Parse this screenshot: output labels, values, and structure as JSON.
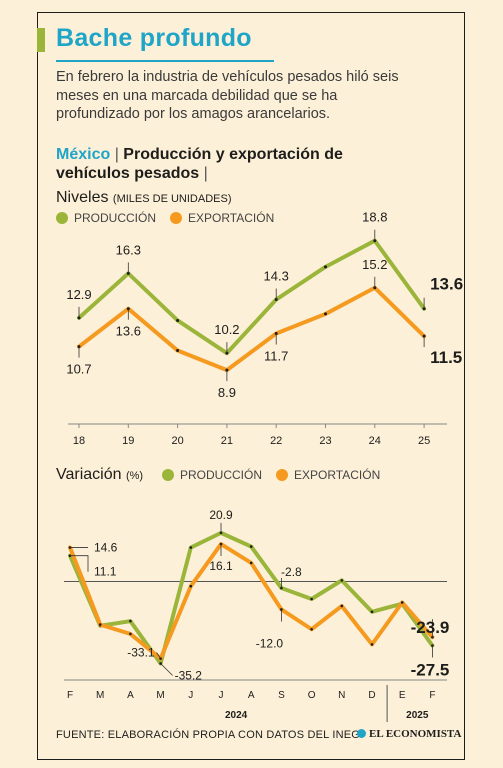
{
  "header": {
    "title": "Bache profundo",
    "description": "En febrero la industria de vehículos pesados hiló seis meses en una marcada debilidad que se ha profundizado por los amagos arancelarios.",
    "subtitle_country": "México",
    "subtitle_sep": " | ",
    "subtitle_text": "Producción y exportación de vehículos pesados",
    "subtitle_trailing": " |"
  },
  "colors": {
    "produccion": "#9ab53a",
    "exportacion": "#f59a1f",
    "title": "#1fa5c8"
  },
  "chart_data": [
    {
      "type": "line",
      "title": "Niveles",
      "units": "(MILES DE UNIDADES)",
      "categories": [
        "18",
        "19",
        "20",
        "21",
        "22",
        "23",
        "24",
        "25"
      ],
      "series": [
        {
          "name": "PRODUCCIÓN",
          "values": [
            12.9,
            16.3,
            12.7,
            10.2,
            14.3,
            16.8,
            18.8,
            13.6
          ]
        },
        {
          "name": "EXPORTACIÓN",
          "values": [
            10.7,
            13.6,
            10.4,
            8.9,
            11.7,
            13.2,
            15.2,
            11.5
          ]
        }
      ],
      "labels": [
        {
          "series": 0,
          "index": 0,
          "text": "12.9"
        },
        {
          "series": 0,
          "index": 1,
          "text": "16.3"
        },
        {
          "series": 0,
          "index": 3,
          "text": "10.2"
        },
        {
          "series": 0,
          "index": 4,
          "text": "14.3"
        },
        {
          "series": 0,
          "index": 6,
          "text": "18.8"
        },
        {
          "series": 0,
          "index": 7,
          "text": "13.6"
        },
        {
          "series": 1,
          "index": 0,
          "text": "10.7"
        },
        {
          "series": 1,
          "index": 1,
          "text": "13.6"
        },
        {
          "series": 1,
          "index": 3,
          "text": "8.9"
        },
        {
          "series": 1,
          "index": 4,
          "text": "11.7"
        },
        {
          "series": 1,
          "index": 6,
          "text": "15.2"
        },
        {
          "series": 1,
          "index": 7,
          "text": "11.5"
        }
      ],
      "ylim": [
        7,
        20
      ]
    },
    {
      "type": "line",
      "title": "Variación",
      "units": "(%)",
      "categories": [
        "F",
        "M",
        "A",
        "M",
        "J",
        "J",
        "A",
        "S",
        "O",
        "N",
        "D",
        "E",
        "F"
      ],
      "group_labels": [
        "2024",
        "2025"
      ],
      "series": [
        {
          "name": "PRODUCCIÓN",
          "values": [
            11.1,
            -19.0,
            -17.0,
            -35.2,
            14.6,
            20.9,
            15.0,
            -2.8,
            -7.5,
            0.5,
            -13.0,
            -9.5,
            -27.5
          ]
        },
        {
          "name": "EXPORTACIÓN",
          "values": [
            14.6,
            -18.5,
            -22.5,
            -33.1,
            -2.0,
            16.1,
            8.0,
            -12.0,
            -20.5,
            -10.5,
            -27.0,
            -9.0,
            -23.9
          ]
        }
      ],
      "labels": [
        {
          "series": 1,
          "index": 0,
          "text": "14.6"
        },
        {
          "series": 0,
          "index": 0,
          "text": "11.1"
        },
        {
          "series": 1,
          "index": 3,
          "text": "-33.1"
        },
        {
          "series": 0,
          "index": 3,
          "text": "-35.2"
        },
        {
          "series": 0,
          "index": 5,
          "text": "20.9"
        },
        {
          "series": 1,
          "index": 5,
          "text": "16.1"
        },
        {
          "series": 0,
          "index": 7,
          "text": "-2.8"
        },
        {
          "series": 1,
          "index": 7,
          "text": "-12.0"
        },
        {
          "series": 1,
          "index": 12,
          "text": "-23.9"
        },
        {
          "series": 0,
          "index": 12,
          "text": "-27.5"
        }
      ],
      "ylim": [
        -38,
        26
      ]
    }
  ],
  "footer": {
    "source": "FUENTE: ELABORACIÓN PROPIA CON DATOS DEL INEGI",
    "brand": "EL ECONOMISTA"
  }
}
